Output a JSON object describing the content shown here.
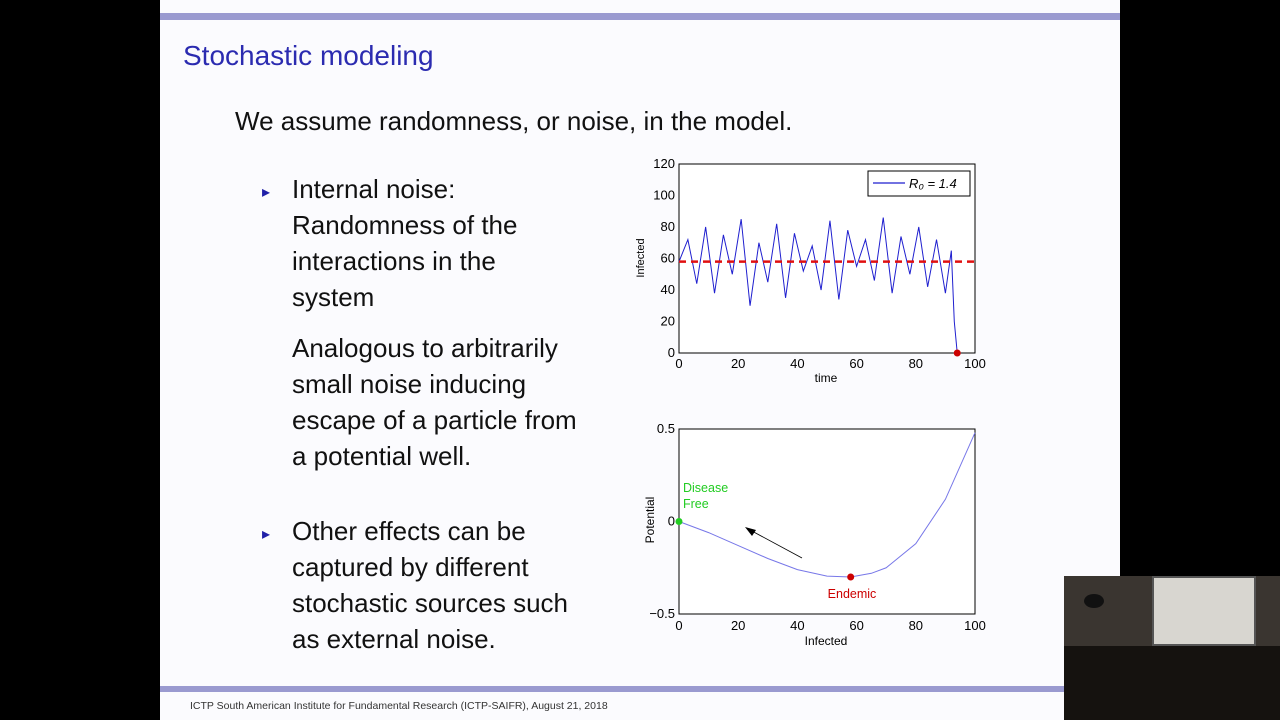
{
  "slide": {
    "title": "Stochastic modeling",
    "lead": "We assume randomness, or noise, in the model.",
    "bullets": [
      {
        "lines": [
          "Internal noise:",
          "Randomness of the",
          "interactions in the",
          "system"
        ]
      },
      {
        "lines": [
          "Other effects can be",
          "captured by different",
          "stochastic sources such",
          "as external noise."
        ]
      }
    ],
    "analogy_lines": [
      "Analogous to arbitrarily",
      "small noise inducing",
      "escape of a particle from",
      "a potential well."
    ],
    "footer": "ICTP South American Institute for Fundamental Research (ICTP-SAIFR), August 21, 2018",
    "bullet_glyph": "▸"
  },
  "colors": {
    "title": "#2b2bb0",
    "bar": "#9a9ad0",
    "series": "#1f1fcf",
    "mean_line": "#e01010",
    "disease_free": "#22cc22",
    "endemic": "#cc0000"
  },
  "chart_data": [
    {
      "type": "line",
      "xlabel": "time",
      "ylabel": "Infected",
      "xlim": [
        0,
        100
      ],
      "ylim": [
        0,
        120
      ],
      "xticks": [
        0,
        20,
        40,
        60,
        80,
        100
      ],
      "yticks": [
        0,
        20,
        40,
        60,
        80,
        100,
        120
      ],
      "legend": {
        "label": "R₀ = 1.4",
        "position": "top-right"
      },
      "series": [
        {
          "x": [
            0,
            3,
            6,
            9,
            12,
            15,
            18,
            21,
            24,
            27,
            30,
            33,
            36,
            39,
            42,
            45,
            48,
            51,
            54,
            57,
            60,
            63,
            66,
            69,
            72,
            75,
            78,
            81,
            84,
            87,
            90,
            92,
            93,
            94
          ],
          "values": [
            58,
            72,
            44,
            80,
            38,
            75,
            50,
            85,
            30,
            70,
            45,
            82,
            35,
            76,
            52,
            68,
            40,
            84,
            34,
            78,
            55,
            72,
            46,
            86,
            38,
            74,
            50,
            80,
            42,
            72,
            38,
            65,
            20,
            0
          ]
        }
      ],
      "mean_line": 58,
      "extinction_point": {
        "x": 94,
        "y": 0
      }
    },
    {
      "type": "line",
      "xlabel": "Infected",
      "ylabel": "Potential",
      "xlim": [
        0,
        100
      ],
      "ylim": [
        -0.5,
        0.5
      ],
      "xticks": [
        0,
        20,
        40,
        60,
        80,
        100
      ],
      "ytick_labels": [
        "0.5",
        "0",
        "−0.5"
      ],
      "series": [
        {
          "x": [
            0,
            10,
            20,
            30,
            40,
            50,
            58,
            65,
            70,
            80,
            90,
            100
          ],
          "values": [
            0,
            -0.06,
            -0.13,
            -0.2,
            -0.26,
            -0.295,
            -0.3,
            -0.28,
            -0.25,
            -0.12,
            0.12,
            0.48
          ]
        }
      ],
      "annotations": {
        "disease_free": "Disease Free",
        "endemic": "Endemic"
      },
      "points": {
        "disease_free": {
          "x": 0,
          "y": 0
        },
        "endemic": {
          "x": 58,
          "y": -0.3
        }
      }
    }
  ]
}
